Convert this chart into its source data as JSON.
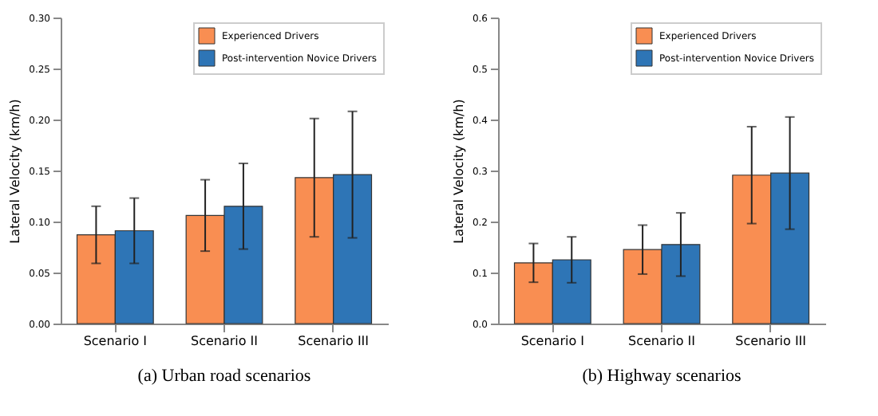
{
  "chart_data": [
    {
      "type": "bar",
      "title": "(a) Urban road scenarios",
      "ylabel": "Lateral Velocity (km/h)",
      "categories": [
        "Scenario I",
        "Scenario II",
        "Scenario III"
      ],
      "series": [
        {
          "name": "Experienced Drivers",
          "color": "#f98e52",
          "values": [
            0.087,
            0.106,
            0.143
          ],
          "errors": [
            [
              0.059,
              0.115
            ],
            [
              0.071,
              0.141
            ],
            [
              0.085,
              0.201
            ]
          ]
        },
        {
          "name": "Post-intervention Novice Drivers",
          "color": "#2e75b6",
          "values": [
            0.091,
            0.115,
            0.146
          ],
          "errors": [
            [
              0.059,
              0.123
            ],
            [
              0.073,
              0.157
            ],
            [
              0.084,
              0.208
            ]
          ]
        }
      ],
      "ylim": [
        0,
        0.3
      ],
      "yticks": [
        {
          "value": 0,
          "label": "0.00"
        },
        {
          "value": 0.05,
          "label": "0.05"
        },
        {
          "value": 0.1,
          "label": "0.10"
        },
        {
          "value": 0.15,
          "label": "0.15"
        },
        {
          "value": 0.2,
          "label": "0.20"
        },
        {
          "value": 0.25,
          "label": "0.25"
        },
        {
          "value": 0.3,
          "label": "0.30"
        }
      ],
      "legend": "top right",
      "grid": false
    },
    {
      "type": "bar",
      "title": "(b) Highway scenarios",
      "ylabel": "Lateral Velocity (km/h)",
      "categories": [
        "Scenario I",
        "Scenario II",
        "Scenario III"
      ],
      "series": [
        {
          "name": "Experienced Drivers",
          "color": "#f98e52",
          "values": [
            0.119,
            0.145,
            0.291
          ],
          "errors": [
            [
              0.081,
              0.157
            ],
            [
              0.097,
              0.193
            ],
            [
              0.196,
              0.386
            ]
          ]
        },
        {
          "name": "Post-intervention Novice Drivers",
          "color": "#2e75b6",
          "values": [
            0.125,
            0.155,
            0.295
          ],
          "errors": [
            [
              0.08,
              0.17
            ],
            [
              0.093,
              0.217
            ],
            [
              0.185,
              0.405
            ]
          ]
        }
      ],
      "ylim": [
        0,
        0.6
      ],
      "yticks": [
        {
          "value": 0,
          "label": "0.0"
        },
        {
          "value": 0.1,
          "label": "0.1"
        },
        {
          "value": 0.2,
          "label": "0.2"
        },
        {
          "value": 0.3,
          "label": "0.3"
        },
        {
          "value": 0.4,
          "label": "0.4"
        },
        {
          "value": 0.5,
          "label": "0.5"
        },
        {
          "value": 0.6,
          "label": "0.6"
        }
      ],
      "legend": "top right",
      "grid": false
    }
  ]
}
